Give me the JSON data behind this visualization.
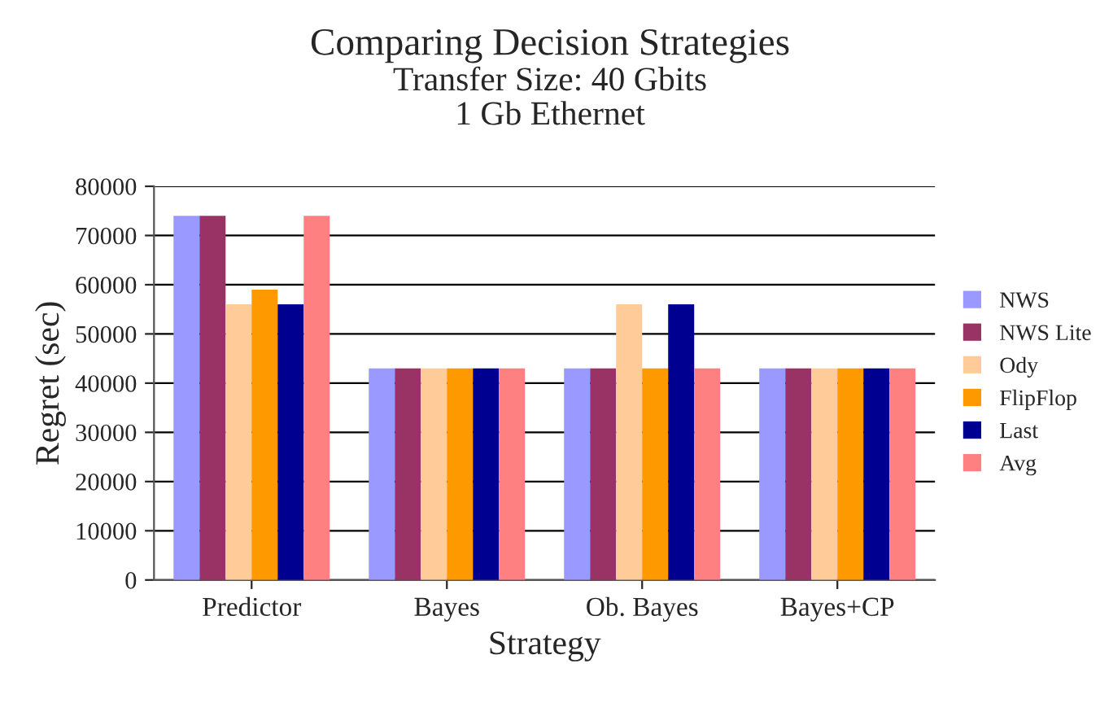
{
  "chart_data": {
    "type": "bar",
    "title": "Comparing Decision Strategies",
    "subtitle": "Transfer Size: 40 Gbits\n1 Gb Ethernet",
    "xlabel": "Strategy",
    "ylabel": "Regret (sec)",
    "categories": [
      "Predictor",
      "Bayes",
      "Ob. Bayes",
      "Bayes+CP"
    ],
    "series": [
      {
        "name": "NWS",
        "color": "#9999ff",
        "values": [
          74000,
          43000,
          43000,
          43000
        ]
      },
      {
        "name": "NWS Lite",
        "color": "#993366",
        "values": [
          74000,
          43000,
          43000,
          43000
        ]
      },
      {
        "name": "Ody",
        "color": "#ffcc99",
        "values": [
          56000,
          43000,
          56000,
          43000
        ]
      },
      {
        "name": "FlipFlop",
        "color": "#ff9900",
        "values": [
          59000,
          43000,
          43000,
          43000
        ]
      },
      {
        "name": "Last",
        "color": "#000090",
        "values": [
          56000,
          43000,
          56000,
          43000
        ]
      },
      {
        "name": "Avg",
        "color": "#ff8080",
        "values": [
          74000,
          43000,
          43000,
          43000
        ]
      }
    ],
    "ylim": [
      0,
      80000
    ],
    "yticks": [
      0,
      10000,
      20000,
      30000,
      40000,
      50000,
      60000,
      70000,
      80000
    ],
    "grid": "y",
    "legend": "right"
  }
}
